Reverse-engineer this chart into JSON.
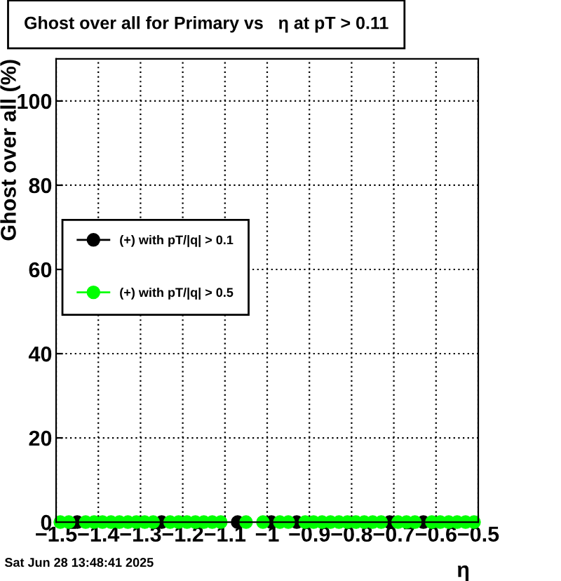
{
  "chart_data": {
    "type": "scatter",
    "title": "Ghost over all for Primary vs   η at pT > 0.11",
    "xlabel": "η",
    "ylabel": "Ghost over all (%)",
    "x": [
      -1.49,
      -1.47,
      -1.45,
      -1.43,
      -1.41,
      -1.39,
      -1.37,
      -1.35,
      -1.33,
      -1.31,
      -1.29,
      -1.27,
      -1.25,
      -1.23,
      -1.21,
      -1.19,
      -1.17,
      -1.15,
      -1.13,
      -1.11,
      -1.09,
      -1.07,
      -1.05,
      -1.03,
      -1.01,
      -0.99,
      -0.97,
      -0.95,
      -0.93,
      -0.91,
      -0.89,
      -0.87,
      -0.85,
      -0.83,
      -0.81,
      -0.79,
      -0.77,
      -0.75,
      -0.73,
      -0.71,
      -0.69,
      -0.67,
      -0.65,
      -0.63,
      -0.61,
      -0.59,
      -0.57,
      -0.55,
      -0.53,
      -0.51
    ],
    "series": [
      {
        "name": "(+) with pT/|q| > 0.1",
        "color": "#000000",
        "values": [
          null,
          null,
          0,
          null,
          null,
          null,
          null,
          null,
          null,
          null,
          null,
          null,
          0,
          null,
          null,
          null,
          null,
          null,
          null,
          null,
          null,
          0,
          null,
          null,
          null,
          0,
          null,
          null,
          0,
          null,
          null,
          null,
          null,
          null,
          null,
          null,
          null,
          null,
          null,
          0,
          null,
          null,
          null,
          0,
          null,
          null,
          null,
          null,
          null,
          null
        ]
      },
      {
        "name": "(+) with pT/|q| > 0.5",
        "color": "#00ff00",
        "values": [
          0,
          0,
          null,
          0,
          0,
          0,
          0,
          0,
          0,
          0,
          0,
          0,
          null,
          0,
          0,
          0,
          0,
          0,
          0,
          0,
          null,
          null,
          0,
          null,
          0,
          null,
          0,
          0,
          null,
          0,
          0,
          0,
          0,
          0,
          0,
          0,
          0,
          0,
          0,
          null,
          0,
          0,
          0,
          null,
          0,
          0,
          0,
          0,
          0,
          0
        ]
      }
    ],
    "xlim": [
      -1.5,
      -0.5
    ],
    "xticks": [
      {
        "value": -1.5,
        "label": "−1.5"
      },
      {
        "value": -1.4,
        "label": "−1.4"
      },
      {
        "value": -1.3,
        "label": "−1.3"
      },
      {
        "value": -1.2,
        "label": "−1.2"
      },
      {
        "value": -1.1,
        "label": "−1.1"
      },
      {
        "value": -1.0,
        "label": "−1"
      },
      {
        "value": -0.9,
        "label": "−0.9"
      },
      {
        "value": -0.8,
        "label": "−0.8"
      },
      {
        "value": -0.7,
        "label": "−0.7"
      },
      {
        "value": -0.6,
        "label": "−0.6"
      },
      {
        "value": -0.5,
        "label": "−0.5"
      }
    ],
    "ylim": [
      0,
      110
    ],
    "yticks": [
      0,
      20,
      40,
      60,
      80,
      100
    ],
    "grid": true,
    "legend": "left",
    "marker": "circle",
    "annotations": [
      "Sat Jun 28 13:48:41 2025"
    ]
  }
}
